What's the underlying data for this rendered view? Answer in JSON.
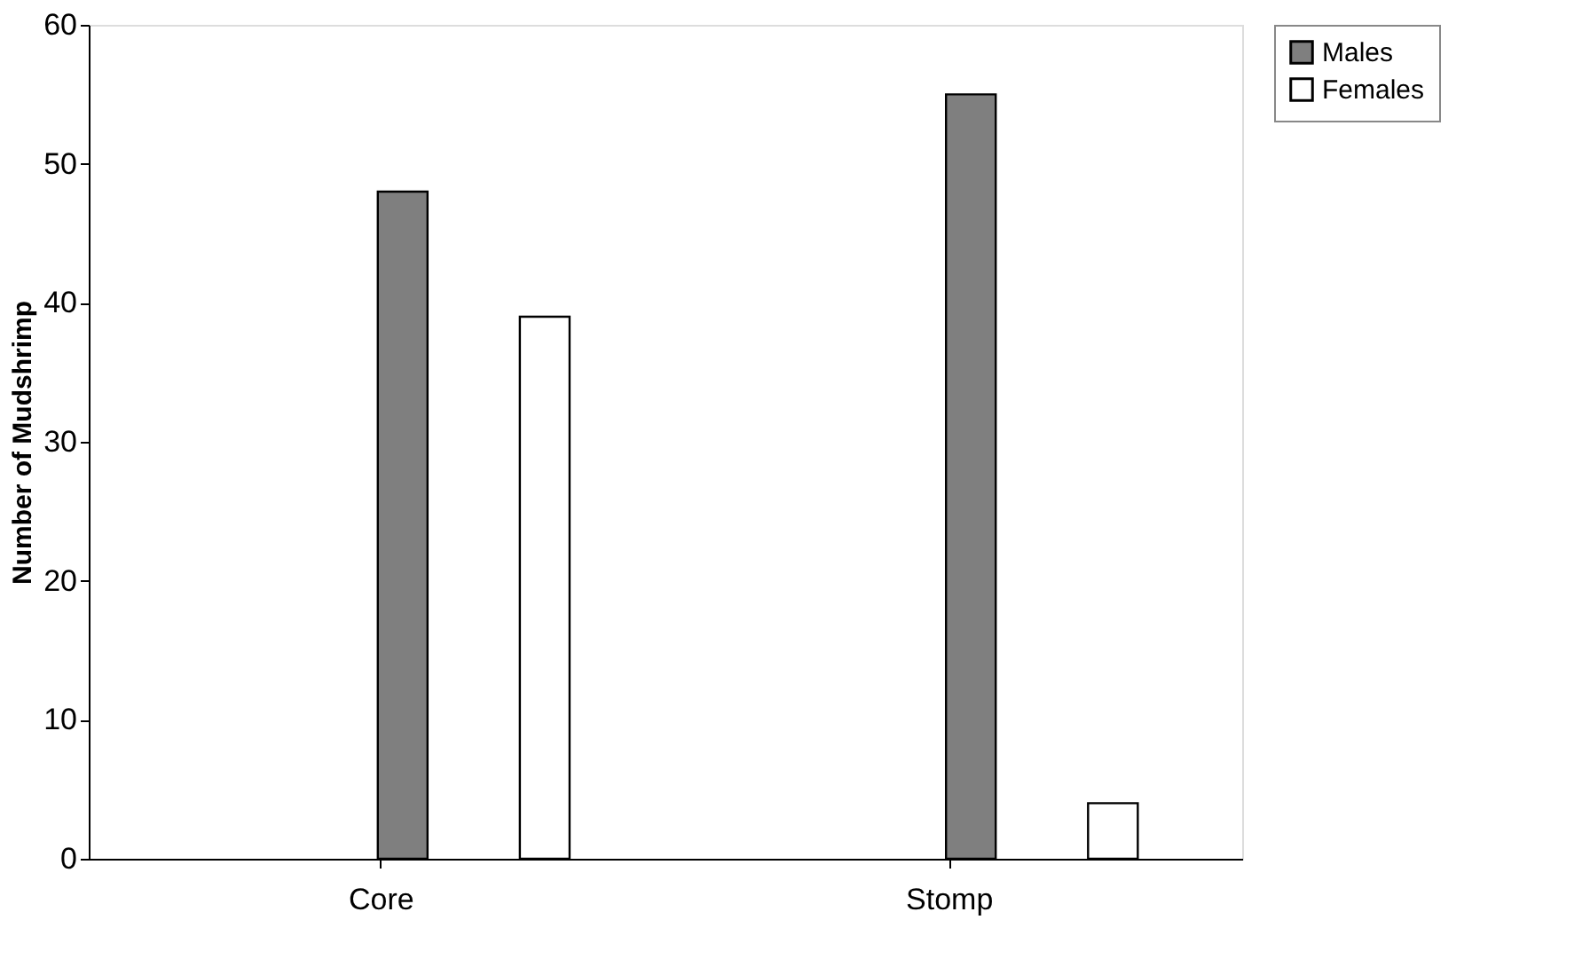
{
  "chart_data": {
    "type": "bar",
    "ylabel": "Number of Mudshrimp",
    "categories": [
      "Core",
      "Stomp"
    ],
    "series": [
      {
        "name": "Males",
        "color": "#7f7f7f",
        "values": [
          48,
          55
        ]
      },
      {
        "name": "Females",
        "color": "#ffffff",
        "values": [
          39,
          4
        ]
      }
    ],
    "ylim": [
      0,
      60
    ],
    "yticks": [
      0,
      10,
      20,
      30,
      40,
      50,
      60
    ],
    "grid": false,
    "legend": "right"
  }
}
